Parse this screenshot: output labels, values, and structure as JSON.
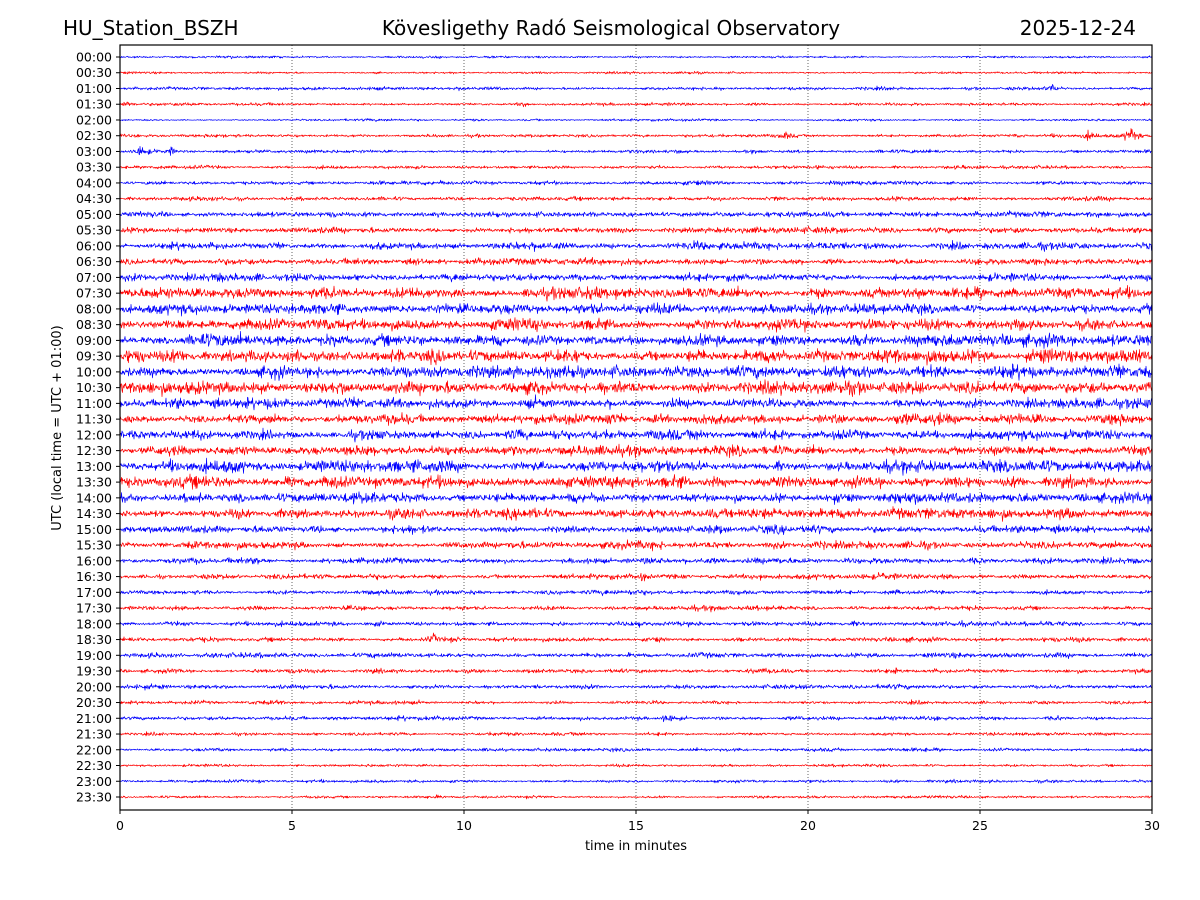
{
  "header": {
    "station": "HU_Station_BSZH",
    "observatory": "Kövesligethy Radó Seismological Observatory",
    "date": "2025-12-24"
  },
  "chart_data": {
    "type": "line",
    "title": "Kövesligethy Radó Seismological Observatory",
    "xlabel": "time in minutes",
    "ylabel": "UTC (local time = UTC + 01:00)",
    "xlim": [
      0,
      30
    ],
    "x_ticks": [
      "0",
      "5",
      "10",
      "15",
      "20",
      "25",
      "30"
    ],
    "x_tick_values": [
      0,
      5,
      10,
      15,
      20,
      25,
      30
    ],
    "grid": "vertical dotted at x ticks",
    "series_colors": [
      "#0000ff",
      "#ff0000"
    ],
    "traces": [
      {
        "label": "00:00",
        "noise": 0.6
      },
      {
        "label": "00:30",
        "noise": 0.6
      },
      {
        "label": "01:00",
        "noise": 0.9,
        "events": [
          [
            27.1,
            4
          ]
        ]
      },
      {
        "label": "01:30",
        "noise": 0.8,
        "events": [
          [
            0.2,
            2.5
          ],
          [
            11.7,
            2
          ]
        ]
      },
      {
        "label": "02:00",
        "noise": 0.6
      },
      {
        "label": "02:30",
        "noise": 0.9,
        "events": [
          [
            19.3,
            2.5
          ],
          [
            28.2,
            3.5
          ],
          [
            29.4,
            6
          ]
        ]
      },
      {
        "label": "03:00",
        "noise": 1.0,
        "events": [
          [
            0.6,
            4
          ],
          [
            1.5,
            2.5
          ]
        ]
      },
      {
        "label": "03:30",
        "noise": 0.9
      },
      {
        "label": "04:00",
        "noise": 1.1
      },
      {
        "label": "04:30",
        "noise": 1.2
      },
      {
        "label": "05:00",
        "noise": 1.5
      },
      {
        "label": "05:30",
        "noise": 1.5
      },
      {
        "label": "06:00",
        "noise": 2.0
      },
      {
        "label": "06:30",
        "noise": 1.8
      },
      {
        "label": "07:00",
        "noise": 2.2
      },
      {
        "label": "07:30",
        "noise": 2.8
      },
      {
        "label": "08:00",
        "noise": 2.5
      },
      {
        "label": "08:30",
        "noise": 3.0
      },
      {
        "label": "09:00",
        "noise": 3.2
      },
      {
        "label": "09:30",
        "noise": 3.4
      },
      {
        "label": "10:00",
        "noise": 3.5
      },
      {
        "label": "10:30",
        "noise": 3.4
      },
      {
        "label": "11:00",
        "noise": 2.8
      },
      {
        "label": "11:30",
        "noise": 2.8
      },
      {
        "label": "12:00",
        "noise": 2.7
      },
      {
        "label": "12:30",
        "noise": 2.6
      },
      {
        "label": "13:00",
        "noise": 3.0
      },
      {
        "label": "13:30",
        "noise": 3.0
      },
      {
        "label": "14:00",
        "noise": 2.8
      },
      {
        "label": "14:30",
        "noise": 2.6
      },
      {
        "label": "15:00",
        "noise": 2.2
      },
      {
        "label": "15:30",
        "noise": 2.0
      },
      {
        "label": "16:00",
        "noise": 1.6
      },
      {
        "label": "16:30",
        "noise": 1.3,
        "events": [
          [
            15.2,
            2
          ],
          [
            18.6,
            2
          ],
          [
            22.2,
            2
          ]
        ]
      },
      {
        "label": "17:00",
        "noise": 1.3
      },
      {
        "label": "17:30",
        "noise": 1.3
      },
      {
        "label": "18:00",
        "noise": 1.3
      },
      {
        "label": "18:30",
        "noise": 1.2,
        "events": [
          [
            9.1,
            3
          ]
        ]
      },
      {
        "label": "19:00",
        "noise": 1.4
      },
      {
        "label": "19:30",
        "noise": 1.2
      },
      {
        "label": "20:00",
        "noise": 1.2
      },
      {
        "label": "20:30",
        "noise": 1.0
      },
      {
        "label": "21:00",
        "noise": 1.1,
        "events": [
          [
            15.9,
            2.5
          ]
        ]
      },
      {
        "label": "21:30",
        "noise": 0.9
      },
      {
        "label": "22:00",
        "noise": 0.9
      },
      {
        "label": "22:30",
        "noise": 0.7
      },
      {
        "label": "23:00",
        "noise": 0.8
      },
      {
        "label": "23:30",
        "noise": 0.8
      }
    ]
  }
}
